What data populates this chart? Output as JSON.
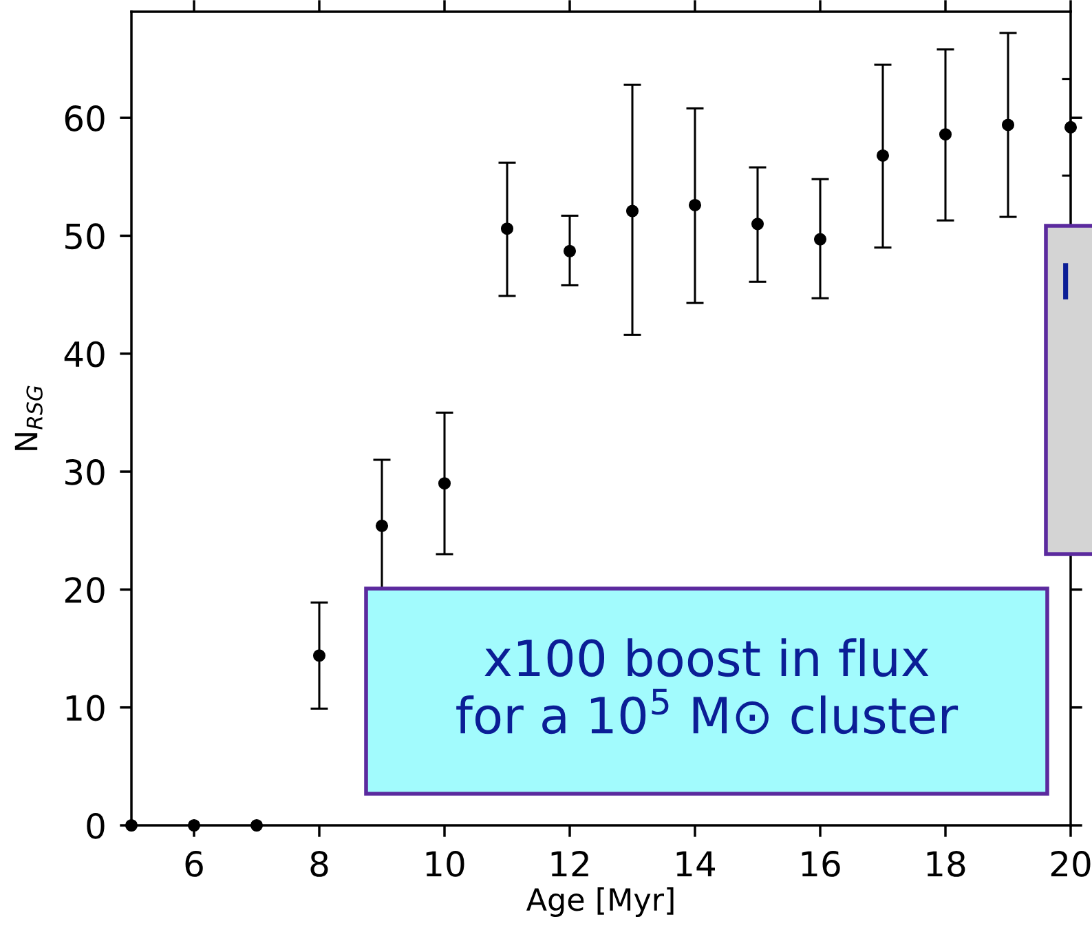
{
  "chart_data": {
    "type": "scatter",
    "xlabel": "Age [Myr]",
    "ylabel": "N$_{RSG}$",
    "x": [
      5,
      6,
      7,
      8,
      9,
      10,
      11,
      12,
      13,
      14,
      15,
      16,
      17,
      18,
      19,
      20
    ],
    "series": [
      {
        "color": "#000000",
        "values": [
          0,
          0,
          0,
          14.4,
          25.4,
          29.0,
          50.6,
          48.7,
          52.1,
          52.6,
          51.0,
          49.7,
          56.8,
          58.6,
          59.4,
          59.2
        ],
        "errors": [
          null,
          null,
          null,
          [
            9.9,
            18.9
          ],
          [
            19.8,
            31.0
          ],
          [
            23.0,
            35.0
          ],
          [
            44.9,
            56.2
          ],
          [
            45.8,
            51.7
          ],
          [
            41.6,
            62.8
          ],
          [
            44.3,
            60.8
          ],
          [
            46.1,
            55.8
          ],
          [
            44.7,
            54.8
          ],
          [
            49.0,
            64.5
          ],
          [
            51.3,
            65.8
          ],
          [
            51.6,
            67.2
          ],
          [
            55.1,
            63.3
          ]
        ]
      }
    ],
    "marker": "circle",
    "xlim": [
      5,
      20
    ],
    "ylim": [
      0,
      69
    ],
    "xticks": [
      6,
      8,
      10,
      12,
      14,
      16,
      18,
      20
    ],
    "yticks": [
      0,
      10,
      20,
      30,
      40,
      50,
      60
    ],
    "grid": false,
    "legend": false,
    "annotations": [
      "x100 boost in flux\nfor a 10$^{5}$ M⊙ cluster",
      "I"
    ]
  }
}
